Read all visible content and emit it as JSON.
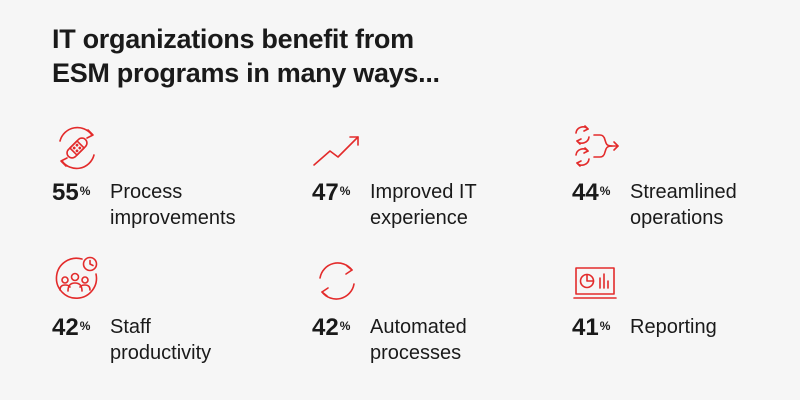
{
  "title": {
    "line1": "IT organizations benefit from",
    "line2": "ESM programs in many ways..."
  },
  "accent_color": "#e32b2b",
  "stats": [
    {
      "value": "55",
      "unit": "%",
      "label_lines": [
        "Process",
        "improvements"
      ],
      "icon": "bandage-cycle-icon"
    },
    {
      "value": "47",
      "unit": "%",
      "label_lines": [
        "Improved IT",
        "experience"
      ],
      "icon": "trend-up-icon"
    },
    {
      "value": "44",
      "unit": "%",
      "label_lines": [
        "Streamlined",
        "operations"
      ],
      "icon": "merge-cycle-icon"
    },
    {
      "value": "42",
      "unit": "%",
      "label_lines": [
        "Staff",
        "productivity"
      ],
      "icon": "team-clock-icon"
    },
    {
      "value": "42",
      "unit": "%",
      "label_lines": [
        "Automated",
        "processes"
      ],
      "icon": "refresh-cycle-icon"
    },
    {
      "value": "41",
      "unit": "%",
      "label_lines": [
        "Reporting"
      ],
      "icon": "dashboard-report-icon"
    }
  ]
}
